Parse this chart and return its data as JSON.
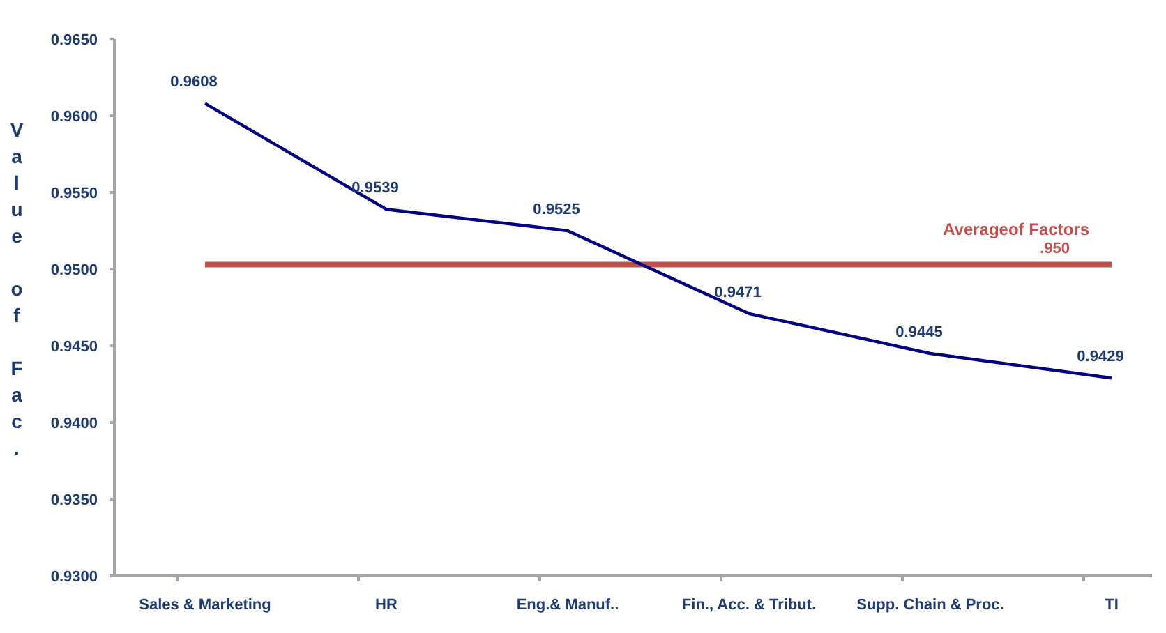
{
  "chart_data": {
    "type": "line",
    "ylabel": "Value of Fac.",
    "categories": [
      "Sales & Marketing",
      "HR",
      "Eng.& Manuf..",
      "Fin., Acc. & Tribut.",
      "Supp. Chain & Proc.",
      "TI"
    ],
    "series": [
      {
        "color": "#000080",
        "values": [
          0.9608,
          0.9539,
          0.9525,
          0.9471,
          0.9445,
          0.9429
        ]
      }
    ],
    "data_labels": true,
    "ylim": [
      0.93,
      0.965
    ],
    "yticks": [
      {
        "value": 0.93,
        "label": "0.9300"
      },
      {
        "value": 0.935,
        "label": "0.9350"
      },
      {
        "value": 0.94,
        "label": "0.9400"
      },
      {
        "value": 0.945,
        "label": "0.9450"
      },
      {
        "value": 0.95,
        "label": "0.9500"
      },
      {
        "value": 0.955,
        "label": "0.9550"
      },
      {
        "value": 0.96,
        "label": "0.9600"
      },
      {
        "value": 0.965,
        "label": "0.9650"
      }
    ],
    "ref_lines": [
      {
        "axis": "y",
        "value": 0.9503,
        "label": ".950",
        "color": "#c0504d"
      }
    ],
    "annotations": [
      "Averageof Factors"
    ],
    "grid": false,
    "marker": "none"
  }
}
